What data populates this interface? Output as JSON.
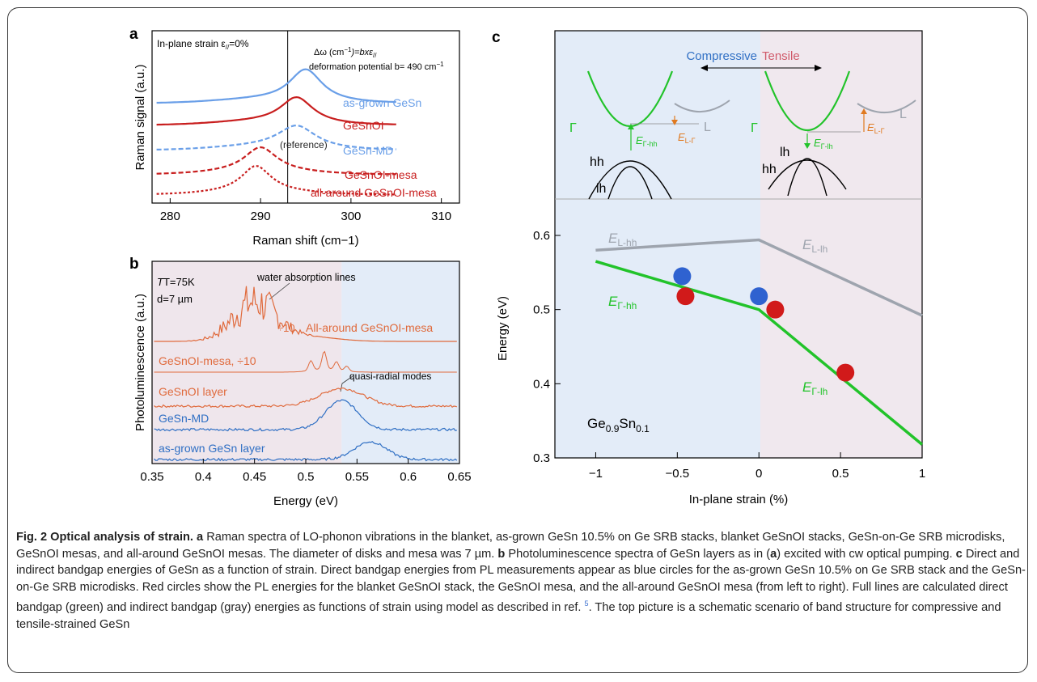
{
  "panel_a": {
    "letter": "a",
    "strain_label": "In-plane strain ε",
    "strain_sub": "//",
    "strain_value": "=0%",
    "formula_prefix": "Δω (cm",
    "formula_sup": "−1",
    "formula_mid": ")=bxε",
    "formula_sub": "//",
    "deform_prefix": "deformation potential b= 490 cm",
    "deform_sup": "−1",
    "reference_label": "(reference)"
  },
  "panel_b": {
    "letter": "b",
    "temp_label": "T=75K",
    "diam_label": "d=7 µm",
    "water_label": "water absorption lines",
    "div10_label": "÷10",
    "quasi_label": "quasi-radial modes"
  },
  "panel_c": {
    "letter": "c",
    "compressive_label": "Compressive",
    "tensile_label": "Tensile",
    "gamma_label": "Γ",
    "L_label": "L",
    "hh_label": "hh",
    "lh_label": "lh",
    "e_gamma_hh_sub": "Γ-hh",
    "e_L_gamma_sub": "L-Γ",
    "e_gamma_lh_sub": "Γ-lh",
    "e_L_hh_sub": "L-hh",
    "e_L_lh_sub": "L-lh",
    "E": "E",
    "material_main": "Ge",
    "material_sub1": "0.9",
    "material_mid": "Sn",
    "material_sub2": "0.1"
  },
  "chart_data": [
    {
      "type": "line",
      "title": "",
      "xlabel": "Raman shift (cm−1)",
      "ylabel": "Raman signal (a.u.)",
      "xlim": [
        278,
        312
      ],
      "xticks": [
        280,
        290,
        300,
        310
      ],
      "vertical_line_x": 293,
      "series": [
        {
          "name": "as-grown GeSn",
          "peak_x": 295,
          "color": "#6a9fe8",
          "style": "solid"
        },
        {
          "name": "GeSnOI",
          "peak_x": 294,
          "color": "#c81e1e",
          "style": "solid"
        },
        {
          "name": "GeSn-MD",
          "peak_x": 294,
          "color": "#6a9fe8",
          "style": "dashed"
        },
        {
          "name": "GeSnOI-mesa",
          "peak_x": 290,
          "color": "#c81e1e",
          "style": "dashed"
        },
        {
          "name": "all-around GeSnOI-mesa",
          "peak_x": 289.5,
          "color": "#c81e1e",
          "style": "dotted"
        }
      ]
    },
    {
      "type": "line",
      "title": "",
      "xlabel": "Energy (eV)",
      "ylabel": "Photoluminescence (a.u.)",
      "xlim": [
        0.35,
        0.65
      ],
      "xticks": [
        0.35,
        0.4,
        0.45,
        0.5,
        0.55,
        0.6,
        0.65
      ],
      "shaded_ranges": [
        [
          0.35,
          0.535
        ],
        [
          0.535,
          0.65
        ]
      ],
      "series": [
        {
          "name": "All-around GeSnOI-mesa",
          "peak_x": 0.44,
          "color": "#e06a3c"
        },
        {
          "name": "GeSnOI-mesa, ÷10",
          "peak_x": 0.518,
          "color": "#e06a3c"
        },
        {
          "name": "GeSnOI layer",
          "peak_x": 0.535,
          "color": "#e06a3c"
        },
        {
          "name": "GeSn-MD",
          "peak_x": 0.535,
          "color": "#2f6fc4"
        },
        {
          "name": "as-grown GeSn layer",
          "peak_x": 0.563,
          "color": "#2f6fc4"
        }
      ]
    },
    {
      "type": "line",
      "title": "",
      "xlabel": "In-plane strain (%)",
      "ylabel": "Energy (eV)",
      "xlim": [
        -1.25,
        1.0
      ],
      "ylim": [
        0.3,
        0.65
      ],
      "xticks": [
        -1,
        -0.5,
        0,
        0.5,
        1
      ],
      "yticks": [
        0.3,
        0.4,
        0.5,
        0.6
      ],
      "xtick_labels": [
        "−1",
        "−0.5",
        "0",
        "0.5",
        "1"
      ],
      "series": [
        {
          "name": "E_Γ-hh / E_Γ-lh",
          "color": "#22c32a",
          "x": [
            -1.0,
            0.0,
            1.0
          ],
          "y": [
            0.565,
            0.5,
            0.318
          ]
        },
        {
          "name": "E_L-hh / E_L-lh",
          "color": "#9ea4ae",
          "x": [
            -1.0,
            0.0,
            1.0
          ],
          "y": [
            0.58,
            0.594,
            0.492
          ]
        }
      ],
      "points_blue": [
        {
          "x": -0.47,
          "y": 0.545
        },
        {
          "x": 0.0,
          "y": 0.518
        }
      ],
      "points_red": [
        {
          "x": -0.45,
          "y": 0.518
        },
        {
          "x": 0.1,
          "y": 0.5
        },
        {
          "x": 0.53,
          "y": 0.415
        }
      ]
    }
  ],
  "caption": {
    "bold_title": "Fig. 2 Optical analysis of strain.",
    "a_letter": "a",
    "a_text": "Raman spectra of LO-phonon vibrations in the blanket, as-grown GeSn 10.5% on Ge SRB stacks, blanket GeSnOI stacks, GeSn-on-Ge SRB microdisks, GeSnOI mesas, and all-around GeSnOI mesas. The diameter of disks and mesa was 7 µm.",
    "b_letter": "b",
    "b_text1": "Photoluminescence spectra of GeSn layers as in (",
    "b_ref": "a",
    "b_text2": ") excited with cw optical pumping.",
    "c_letter": "c",
    "c_text1": "Direct and indirect bandgap energies of GeSn as a function of strain. Direct bandgap energies from PL measurements appear as blue circles for the as-grown GeSn 10.5% on Ge SRB stack and the GeSn-on-Ge SRB microdisks. Red circles show the PL energies for the blanket GeSnOI stack, the GeSnOI mesa, and the all-around GeSnOI mesa (from left to right). Full lines are calculated direct bandgap (green) and indirect bandgap (gray) energies as functions of strain using model as described in ref.",
    "ref_num": "5",
    "c_text2": ". The top picture is a schematic scenario of band structure for compressive and tensile-strained GeSn"
  }
}
